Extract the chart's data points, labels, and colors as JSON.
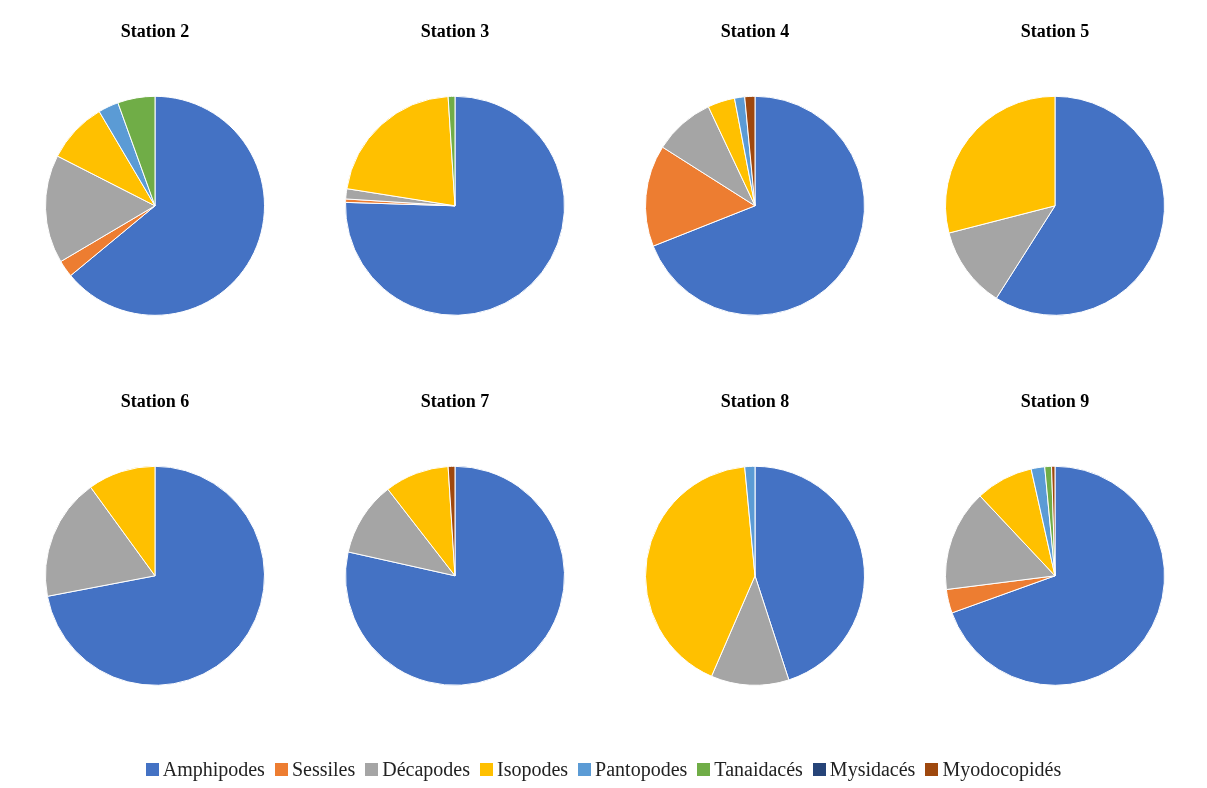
{
  "chart_data": [
    {
      "type": "pie",
      "title": "Station 2",
      "legend": "bottom",
      "categories": [
        "Amphipodes",
        "Sessiles",
        "Décapodes",
        "Isopodes",
        "Pantopodes",
        "Tanaidacés",
        "Mysidacés",
        "Myodocopidés"
      ],
      "values": [
        64,
        2.5,
        16,
        9,
        3,
        5.5,
        0,
        0
      ],
      "colors": [
        "#4472c4",
        "#ed7d31",
        "#a5a5a5",
        "#ffc000",
        "#5b9bd5",
        "#70ad47",
        "#264478",
        "#9e480e"
      ]
    },
    {
      "type": "pie",
      "title": "Station 3",
      "categories": [
        null,
        null,
        null,
        null,
        null,
        null,
        null,
        null
      ],
      "values": [
        75.5,
        0.5,
        1.5,
        21.5,
        0,
        1,
        0,
        0
      ],
      "colors": [
        "#4472c4",
        "#ed7d31",
        "#a5a5a5",
        "#ffc000",
        "#5b9bd5",
        "#70ad47",
        "#264478",
        "#9e480e"
      ]
    },
    {
      "type": "pie",
      "title": "Station 4",
      "categories": [
        null,
        null,
        null,
        null,
        null,
        null,
        null,
        null
      ],
      "values": [
        69,
        15,
        9,
        4,
        1.5,
        0,
        0,
        1.5
      ],
      "colors": [
        "#4472c4",
        "#ed7d31",
        "#a5a5a5",
        "#ffc000",
        "#5b9bd5",
        "#70ad47",
        "#264478",
        "#9e480e"
      ]
    },
    {
      "type": "pie",
      "title": "Station 5",
      "categories": [
        null,
        null,
        null,
        null,
        null,
        null,
        null,
        null
      ],
      "values": [
        59,
        0,
        12,
        29,
        0,
        0,
        0,
        0
      ],
      "colors": [
        "#4472c4",
        "#ed7d31",
        "#a5a5a5",
        "#ffc000",
        "#5b9bd5",
        "#70ad47",
        "#264478",
        "#9e480e"
      ]
    },
    {
      "type": "pie",
      "title": "Station 6",
      "categories": [
        null,
        null,
        null,
        null,
        null,
        null,
        null,
        null
      ],
      "values": [
        72,
        0,
        18,
        10,
        0,
        0,
        0,
        0
      ],
      "colors": [
        "#4472c4",
        "#ed7d31",
        "#a5a5a5",
        "#ffc000",
        "#5b9bd5",
        "#70ad47",
        "#264478",
        "#9e480e"
      ]
    },
    {
      "type": "pie",
      "title": "Station 7",
      "categories": [
        null,
        null,
        null,
        null,
        null,
        null,
        null,
        null
      ],
      "values": [
        78.5,
        0,
        11,
        9.5,
        0,
        0,
        0,
        1
      ],
      "colors": [
        "#4472c4",
        "#ed7d31",
        "#a5a5a5",
        "#ffc000",
        "#5b9bd5",
        "#70ad47",
        "#264478",
        "#9e480e"
      ]
    },
    {
      "type": "pie",
      "title": "Station 8",
      "categories": [
        null,
        null,
        null,
        null,
        null,
        null,
        null,
        null
      ],
      "values": [
        45,
        0,
        11.5,
        42,
        1.5,
        0,
        0,
        0
      ],
      "colors": [
        "#4472c4",
        "#ed7d31",
        "#a5a5a5",
        "#ffc000",
        "#5b9bd5",
        "#70ad47",
        "#264478",
        "#9e480e"
      ]
    },
    {
      "type": "pie",
      "title": "Station 9",
      "categories": [
        null,
        null,
        null,
        null,
        null,
        null,
        null,
        null
      ],
      "values": [
        69.5,
        3.5,
        15,
        8.5,
        2,
        1,
        0,
        0.5
      ],
      "colors": [
        "#4472c4",
        "#ed7d31",
        "#a5a5a5",
        "#ffc000",
        "#5b9bd5",
        "#70ad47",
        "#264478",
        "#9e480e"
      ]
    }
  ]
}
